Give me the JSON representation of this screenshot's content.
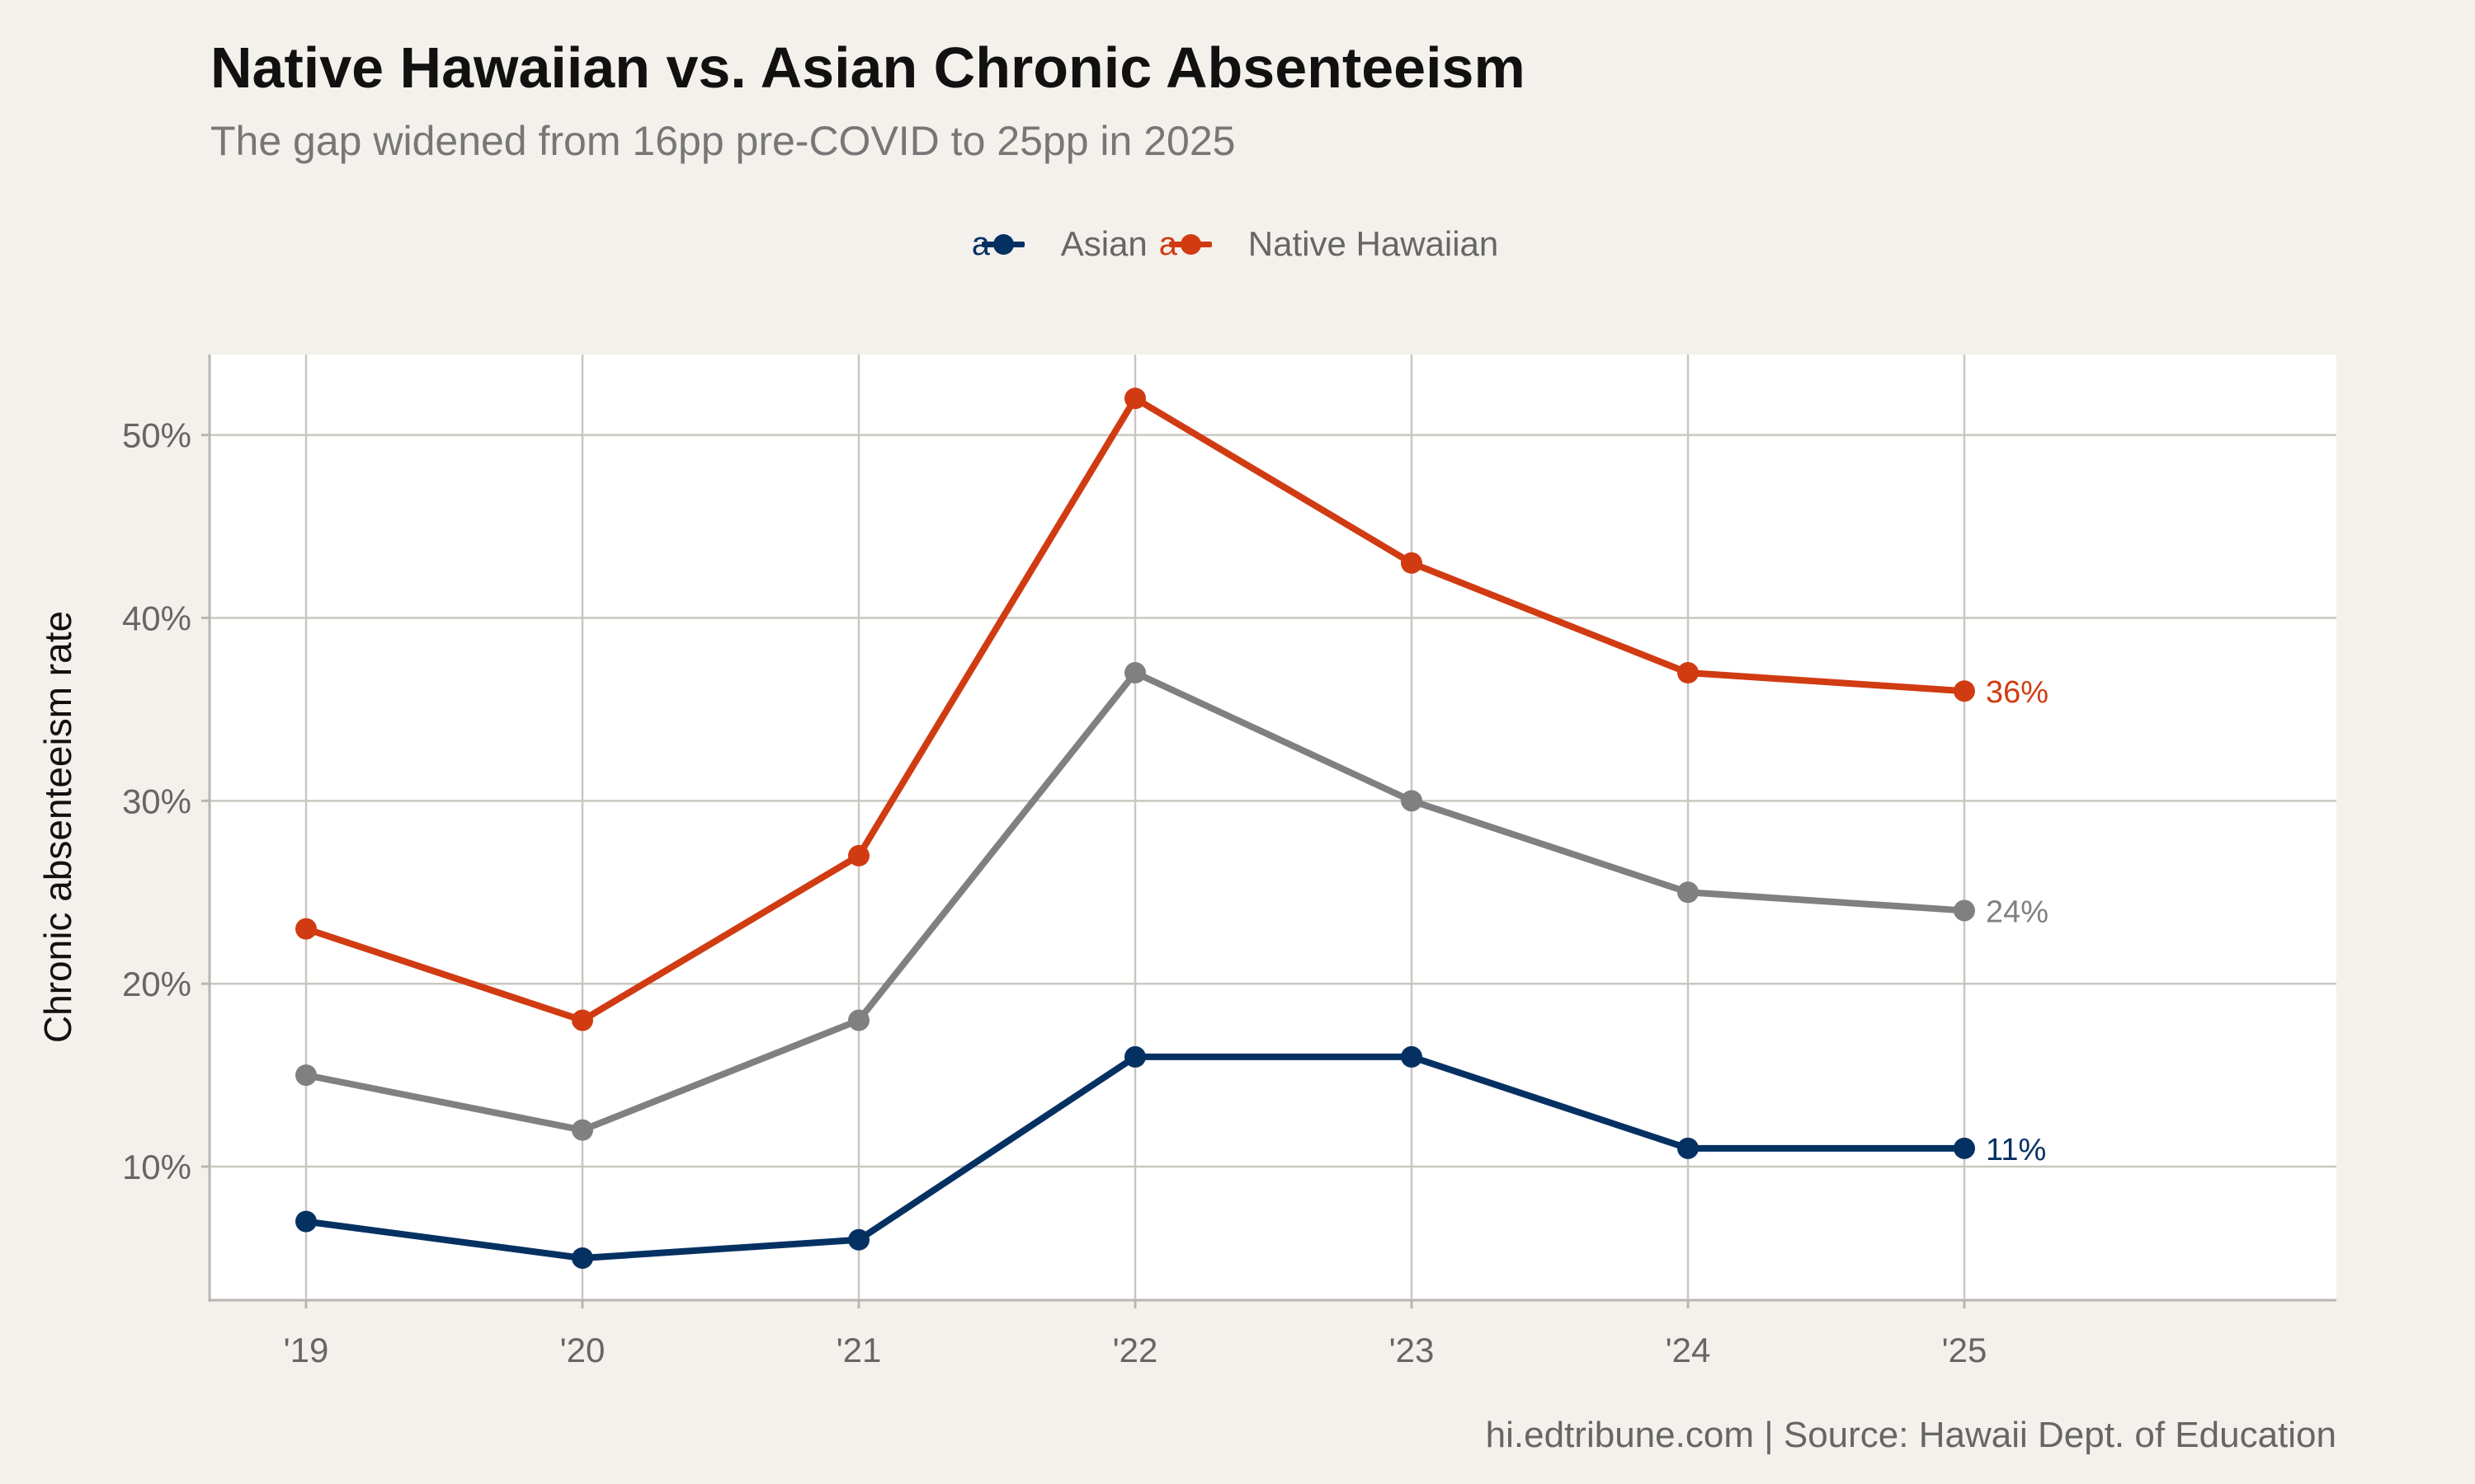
{
  "title": "Native Hawaiian vs. Asian Chronic Absenteeism",
  "subtitle": "The gap widened from 16pp pre-COVID to 25pp in 2025",
  "caption": "hi.edtribune.com | Source: Hawaii Dept. of Education",
  "legend": {
    "items": [
      {
        "label": "Asian",
        "color": "#053162"
      },
      {
        "label": "Native Hawaiian",
        "color": "#d13b12"
      }
    ]
  },
  "chart_data": {
    "type": "line",
    "categories": [
      "'19",
      "'20",
      "'21",
      "'22",
      "'23",
      "'24",
      "'25"
    ],
    "ylabel": "Chronic absenteeism rate",
    "xlabel": "",
    "ylim": [
      2.7,
      54.4
    ],
    "yticks": [
      10,
      20,
      30,
      40,
      50
    ],
    "ytick_labels": [
      "10%",
      "20%",
      "30%",
      "40%",
      "50%"
    ],
    "grid": true,
    "legend_position": "top",
    "series": [
      {
        "name": "Native Hawaiian",
        "color": "#d13b12",
        "values": [
          23,
          18,
          27,
          52,
          43,
          37,
          36
        ],
        "end_label": "36%"
      },
      {
        "color": "#808080",
        "values": [
          15,
          12,
          18,
          37,
          30,
          25,
          24
        ],
        "end_label": "24%"
      },
      {
        "name": "Asian",
        "color": "#053162",
        "values": [
          7,
          5,
          6,
          16,
          16,
          11,
          11
        ],
        "end_label": "11%"
      }
    ]
  }
}
